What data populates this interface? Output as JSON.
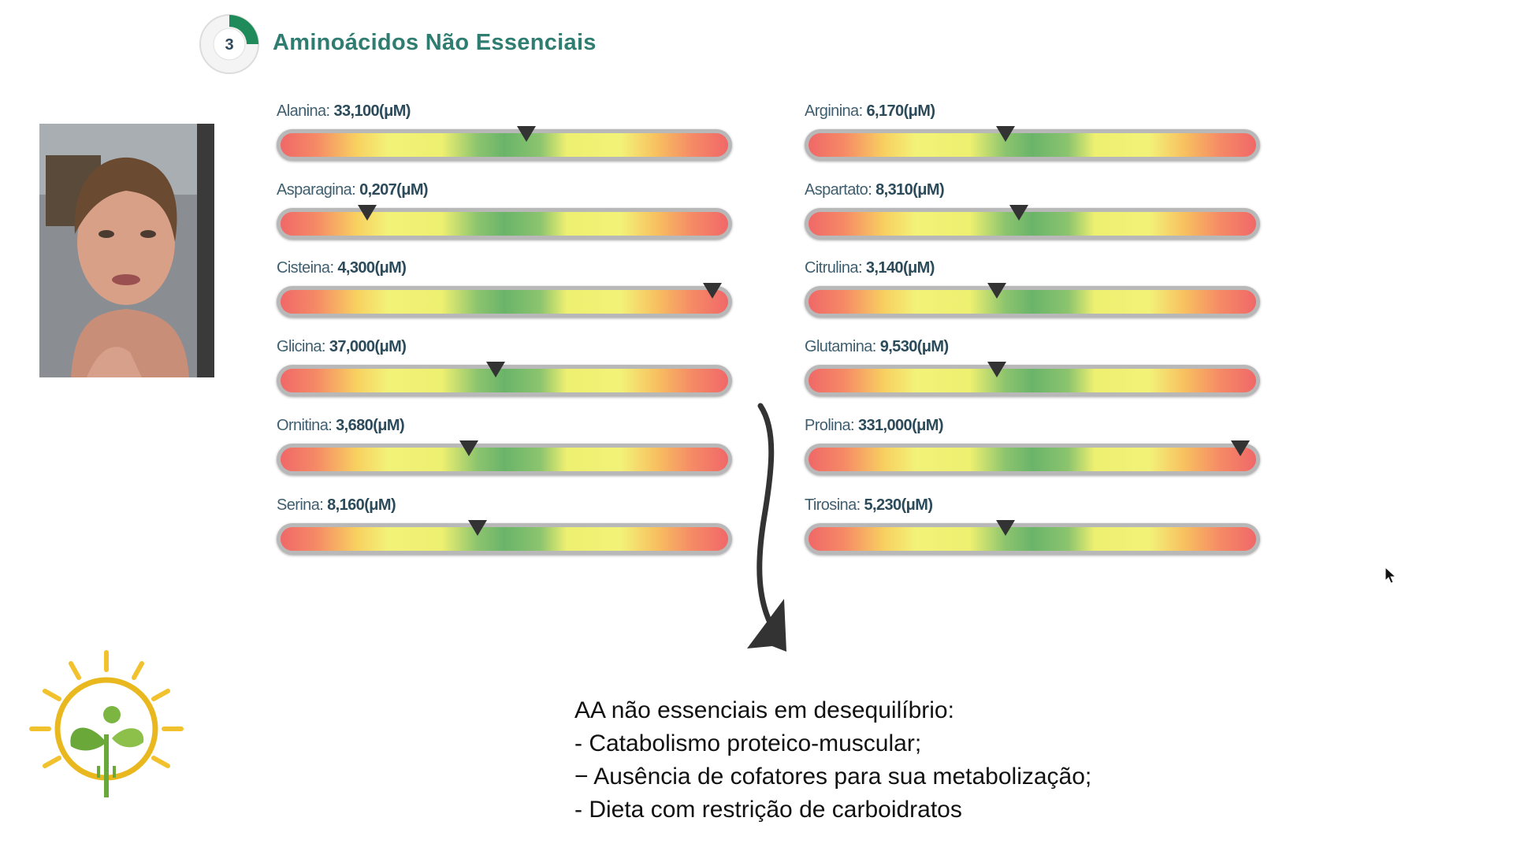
{
  "header": {
    "step": "3",
    "title": "Aminoácidos Não Essenciais"
  },
  "gauges": [
    {
      "name": "Alanina:",
      "value": "33,100(μM)",
      "marker": 55
    },
    {
      "name": "Arginina:",
      "value": "6,170(μM)",
      "marker": 44
    },
    {
      "name": "Asparagina:",
      "value": "0,207(μM)",
      "marker": 19
    },
    {
      "name": "Aspartato:",
      "value": "8,310(μM)",
      "marker": 47
    },
    {
      "name": "Cisteina:",
      "value": "4,300(μM)",
      "marker": 97
    },
    {
      "name": "Citrulina:",
      "value": "3,140(μM)",
      "marker": 42
    },
    {
      "name": "Glicina:",
      "value": "37,000(μM)",
      "marker": 48
    },
    {
      "name": "Glutamina:",
      "value": "9,530(μM)",
      "marker": 42
    },
    {
      "name": "Ornitina:",
      "value": "3,680(μM)",
      "marker": 42
    },
    {
      "name": "Prolina:",
      "value": "331,000(μM)",
      "marker": 97
    },
    {
      "name": "Serina:",
      "value": "8,160(μM)",
      "marker": 44
    },
    {
      "name": "Tirosina:",
      "value": "5,230(μM)",
      "marker": 44
    }
  ],
  "notes": [
    "AA não essenciais em desequilíbrio:",
    "- Catabolismo proteico-muscular;",
    "− Ausência de cofatores para sua metabolização;",
    "- Dieta com restrição de carboidratos"
  ]
}
